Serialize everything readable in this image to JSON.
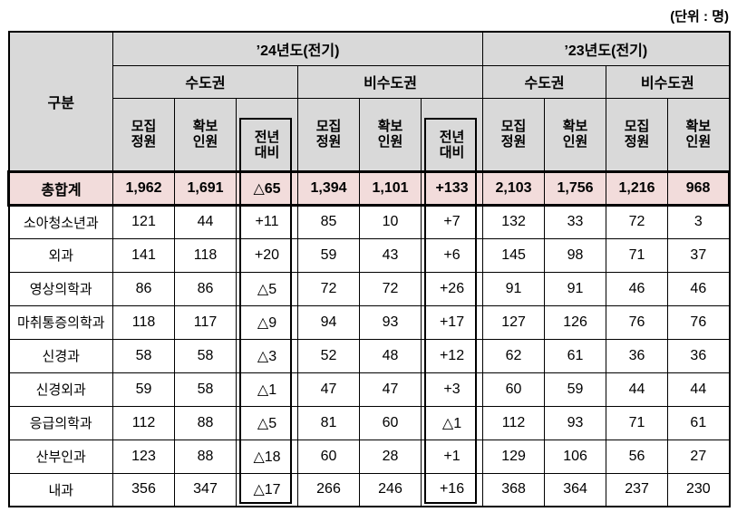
{
  "unit_note": "(단위 : 명)",
  "colors": {
    "header_bg": "#d9d9d9",
    "total_row_bg": "#f2dcdb",
    "border": "#000000"
  },
  "table": {
    "corner_header": "구분",
    "year_groups": [
      {
        "label": "’24년도(전기)"
      },
      {
        "label": "’23년도(전기)"
      }
    ],
    "region_headers": [
      {
        "label": "수도권"
      },
      {
        "label": "비수도권"
      },
      {
        "label": "수도권"
      },
      {
        "label": "비수도권"
      }
    ],
    "sub_headers": [
      "모집\n정원",
      "확보\n인원",
      "전년\n대비",
      "모집\n정원",
      "확보\n인원",
      "전년\n대비",
      "모집\n정원",
      "확보\n인원",
      "모집\n정원",
      "확보\n인원"
    ],
    "total_row": {
      "label": "총합계",
      "values": [
        "1,962",
        "1,691",
        "△65",
        "1,394",
        "1,101",
        "+133",
        "2,103",
        "1,756",
        "1,216",
        "968"
      ]
    },
    "rows": [
      {
        "label": "소아청소년과",
        "values": [
          "121",
          "44",
          "+11",
          "85",
          "10",
          "+7",
          "132",
          "33",
          "72",
          "3"
        ]
      },
      {
        "label": "외과",
        "values": [
          "141",
          "118",
          "+20",
          "59",
          "43",
          "+6",
          "145",
          "98",
          "71",
          "37"
        ]
      },
      {
        "label": "영상의학과",
        "values": [
          "86",
          "86",
          "△5",
          "72",
          "72",
          "+26",
          "91",
          "91",
          "46",
          "46"
        ]
      },
      {
        "label": "마취통증의학과",
        "values": [
          "118",
          "117",
          "△9",
          "94",
          "93",
          "+17",
          "127",
          "126",
          "76",
          "76"
        ]
      },
      {
        "label": "신경과",
        "values": [
          "58",
          "58",
          "△3",
          "52",
          "48",
          "+12",
          "62",
          "61",
          "36",
          "36"
        ]
      },
      {
        "label": "신경외과",
        "values": [
          "59",
          "58",
          "△1",
          "47",
          "47",
          "+3",
          "60",
          "59",
          "44",
          "44"
        ]
      },
      {
        "label": "응급의학과",
        "values": [
          "112",
          "88",
          "△5",
          "81",
          "60",
          "△1",
          "112",
          "93",
          "71",
          "61"
        ]
      },
      {
        "label": "산부인과",
        "values": [
          "123",
          "88",
          "△18",
          "60",
          "28",
          "+1",
          "129",
          "106",
          "56",
          "27"
        ]
      },
      {
        "label": "내과",
        "values": [
          "356",
          "347",
          "△17",
          "266",
          "246",
          "+16",
          "368",
          "364",
          "237",
          "230"
        ]
      }
    ]
  }
}
